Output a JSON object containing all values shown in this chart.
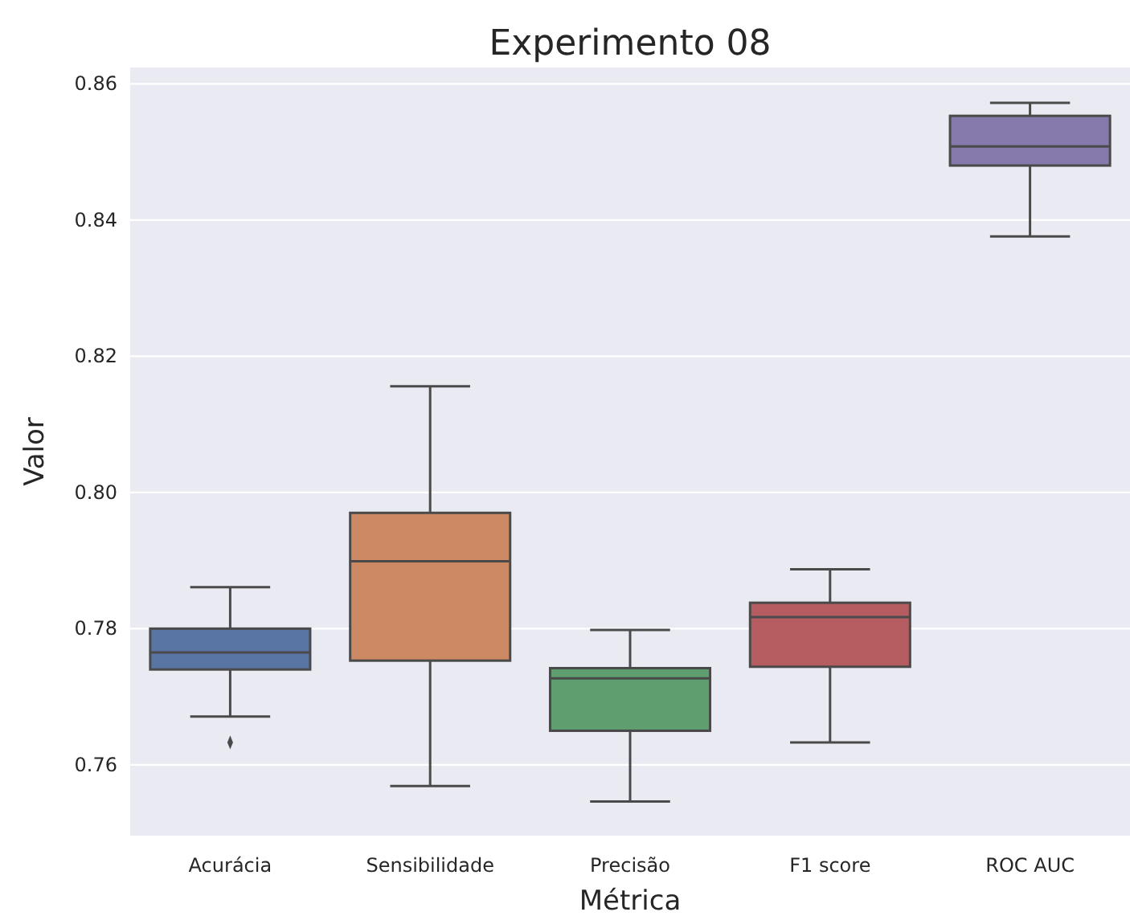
{
  "chart_data": {
    "type": "box",
    "title": "Experimento 08",
    "xlabel": "Métrica",
    "ylabel": "Valor",
    "categories": [
      "Acurácia",
      "Sensibilidade",
      "Precisão",
      "F1 score",
      "ROC AUC"
    ],
    "colors": [
      "#5875a4",
      "#cc8963",
      "#5f9e6e",
      "#b55d60",
      "#857aab"
    ],
    "boxes": [
      {
        "low": 0.7671,
        "q1": 0.774,
        "median": 0.7765,
        "q3": 0.78,
        "high": 0.7861,
        "outliers": [
          0.7633
        ]
      },
      {
        "low": 0.7569,
        "q1": 0.7753,
        "median": 0.7899,
        "q3": 0.797,
        "high": 0.8156
      },
      {
        "low": 0.7546,
        "q1": 0.765,
        "median": 0.7727,
        "q3": 0.7742,
        "high": 0.7798
      },
      {
        "low": 0.7633,
        "q1": 0.7744,
        "median": 0.7817,
        "q3": 0.7838,
        "high": 0.7887
      },
      {
        "low": 0.8376,
        "q1": 0.848,
        "median": 0.8508,
        "q3": 0.8553,
        "high": 0.8572
      }
    ],
    "ylim": [
      0.7496,
      0.8624
    ],
    "yticks": [
      0.76,
      0.78,
      {
        "value": 0.8,
        "label": "0.80"
      },
      0.82,
      0.84,
      0.86
    ],
    "grid": "y"
  }
}
